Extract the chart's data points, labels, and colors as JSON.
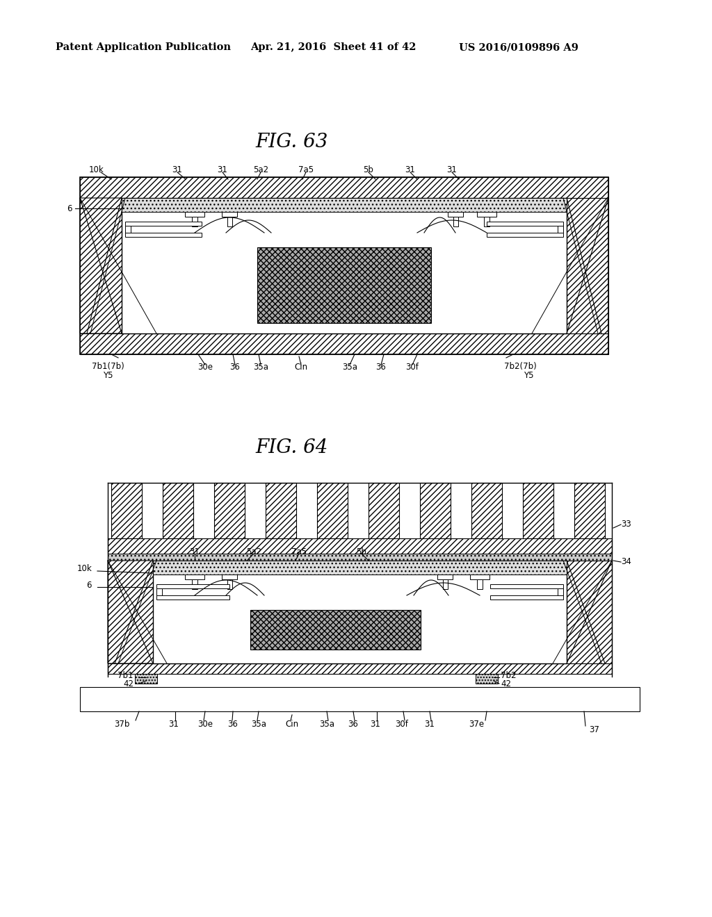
{
  "bg_color": "#ffffff",
  "header_left": "Patent Application Publication",
  "header_center": "Apr. 21, 2016  Sheet 41 of 42",
  "header_right": "US 2016/0109896 A9",
  "fig63_title": "FIG. 63",
  "fig64_title": "FIG. 64"
}
